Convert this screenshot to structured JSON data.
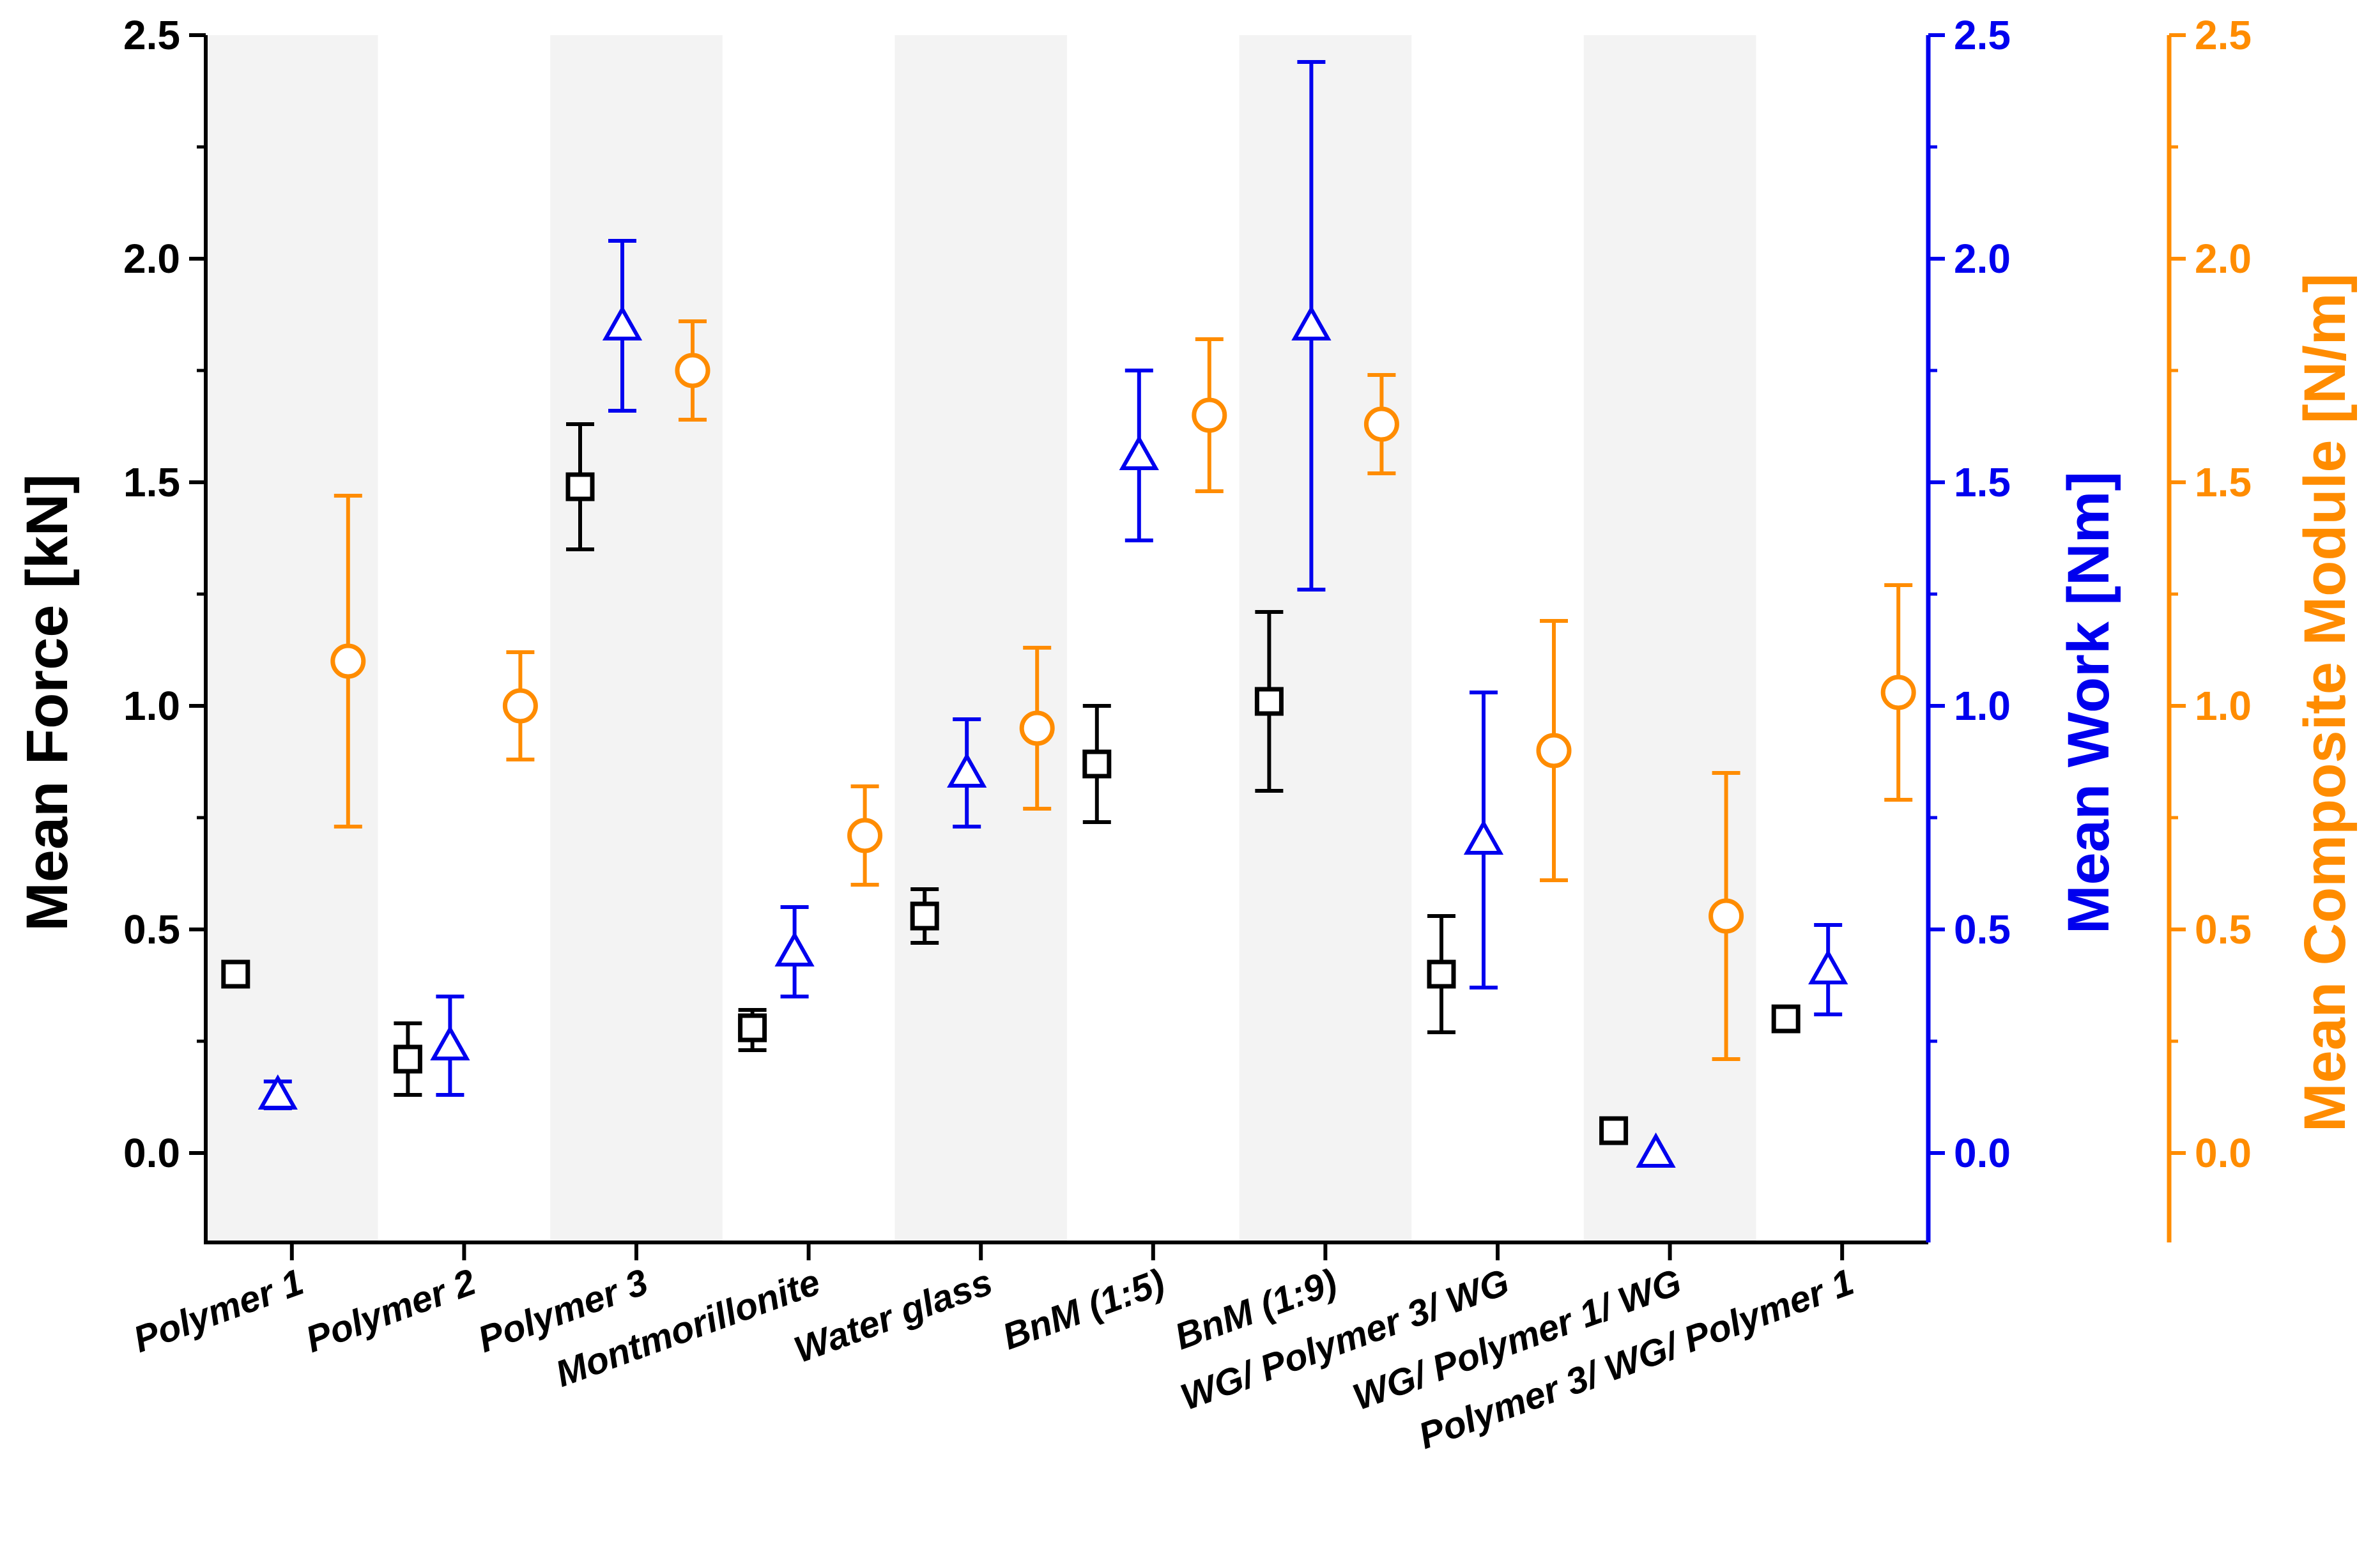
{
  "chart_data": {
    "type": "scatter",
    "categories": [
      "Polymer 1",
      "Polymer 2",
      "Polymer 3",
      "Montmorillonite",
      "Water glass",
      "BnM (1:5)",
      "BnM (1:9)",
      "WG/ Polymer 3/ WG",
      "WG/ Polymer 1/ WG",
      "Polymer 3/ WG/ Polymer 1"
    ],
    "shaded_categories": [
      0,
      2,
      4,
      6,
      8
    ],
    "ylim": [
      -0.2,
      2.5
    ],
    "yticks": [
      "0.0",
      "0.5",
      "1.0",
      "1.5",
      "2.0",
      "2.5"
    ],
    "axes": [
      {
        "id": "force",
        "title": "Mean Force [kN]",
        "color": "#000000"
      },
      {
        "id": "work",
        "title": "Mean Work [Nm]",
        "color": "#0000ee"
      },
      {
        "id": "module",
        "title": "Mean Composite Module [N/m]",
        "color": "#ff8c00"
      }
    ],
    "series": [
      {
        "name": "Mean Force",
        "axis": "force",
        "marker": "square",
        "color": "#000000",
        "points": [
          {
            "cat": 0,
            "y": 0.4,
            "lo": 0.39,
            "hi": 0.41
          },
          {
            "cat": 1,
            "y": 0.21,
            "lo": 0.13,
            "hi": 0.29
          },
          {
            "cat": 2,
            "y": 1.49,
            "lo": 1.35,
            "hi": 1.63
          },
          {
            "cat": 3,
            "y": 0.28,
            "lo": 0.23,
            "hi": 0.32
          },
          {
            "cat": 4,
            "y": 0.53,
            "lo": 0.47,
            "hi": 0.59
          },
          {
            "cat": 5,
            "y": 0.87,
            "lo": 0.74,
            "hi": 1.0
          },
          {
            "cat": 6,
            "y": 1.01,
            "lo": 0.81,
            "hi": 1.21
          },
          {
            "cat": 7,
            "y": 0.4,
            "lo": 0.27,
            "hi": 0.53
          },
          {
            "cat": 8,
            "y": 0.05,
            "lo": 0.04,
            "hi": 0.06
          },
          {
            "cat": 9,
            "y": 0.3,
            "lo": 0.29,
            "hi": 0.31
          }
        ]
      },
      {
        "name": "Mean Work",
        "axis": "work",
        "marker": "triangle",
        "color": "#0000ee",
        "points": [
          {
            "cat": 0,
            "y": 0.13,
            "lo": 0.1,
            "hi": 0.16
          },
          {
            "cat": 1,
            "y": 0.24,
            "lo": 0.13,
            "hi": 0.35
          },
          {
            "cat": 2,
            "y": 1.85,
            "lo": 1.66,
            "hi": 2.04
          },
          {
            "cat": 3,
            "y": 0.45,
            "lo": 0.35,
            "hi": 0.55
          },
          {
            "cat": 4,
            "y": 0.85,
            "lo": 0.73,
            "hi": 0.97
          },
          {
            "cat": 5,
            "y": 1.56,
            "lo": 1.37,
            "hi": 1.75
          },
          {
            "cat": 6,
            "y": 1.85,
            "lo": 1.26,
            "hi": 2.44
          },
          {
            "cat": 7,
            "y": 0.7,
            "lo": 0.37,
            "hi": 1.03
          },
          {
            "cat": 8,
            "y": 0.0,
            "lo": 0.0,
            "hi": 0.0
          },
          {
            "cat": 9,
            "y": 0.41,
            "lo": 0.31,
            "hi": 0.51
          }
        ]
      },
      {
        "name": "Mean Composite Module",
        "axis": "module",
        "marker": "circle",
        "color": "#ff8c00",
        "points": [
          {
            "cat": 0,
            "y": 1.1,
            "lo": 0.73,
            "hi": 1.47
          },
          {
            "cat": 1,
            "y": 1.0,
            "lo": 0.88,
            "hi": 1.12
          },
          {
            "cat": 2,
            "y": 1.75,
            "lo": 1.64,
            "hi": 1.86
          },
          {
            "cat": 3,
            "y": 0.71,
            "lo": 0.6,
            "hi": 0.82
          },
          {
            "cat": 4,
            "y": 0.95,
            "lo": 0.77,
            "hi": 1.13
          },
          {
            "cat": 5,
            "y": 1.65,
            "lo": 1.48,
            "hi": 1.82
          },
          {
            "cat": 6,
            "y": 1.63,
            "lo": 1.52,
            "hi": 1.74
          },
          {
            "cat": 7,
            "y": 0.9,
            "lo": 0.61,
            "hi": 1.19
          },
          {
            "cat": 8,
            "y": 0.53,
            "lo": 0.21,
            "hi": 0.85
          },
          {
            "cat": 9,
            "y": 1.03,
            "lo": 0.79,
            "hi": 1.27
          }
        ]
      }
    ]
  }
}
